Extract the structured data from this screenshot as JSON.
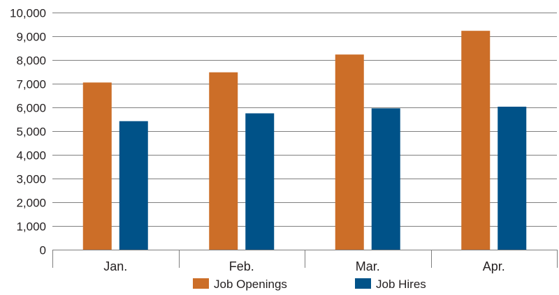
{
  "chart_data": {
    "type": "bar",
    "categories": [
      "Jan.",
      "Feb.",
      "Mar.",
      "Apr."
    ],
    "series": [
      {
        "name": "Job Openings",
        "values": [
          7050,
          7480,
          8230,
          9230
        ],
        "color": "#cc6e28"
      },
      {
        "name": "Job Hires",
        "values": [
          5420,
          5750,
          5960,
          6030
        ],
        "color": "#005288"
      }
    ],
    "ylim": [
      0,
      10000
    ],
    "yticks": [
      0,
      1000,
      2000,
      3000,
      4000,
      5000,
      6000,
      7000,
      8000,
      9000,
      10000
    ],
    "ytick_labels": [
      "0",
      "1,000",
      "2,000",
      "3,000",
      "4,000",
      "5,000",
      "6,000",
      "7,000",
      "8,000",
      "9,000",
      "10,000"
    ],
    "grid": true,
    "legend_position": "bottom-center",
    "title": "",
    "xlabel": "",
    "ylabel": ""
  }
}
